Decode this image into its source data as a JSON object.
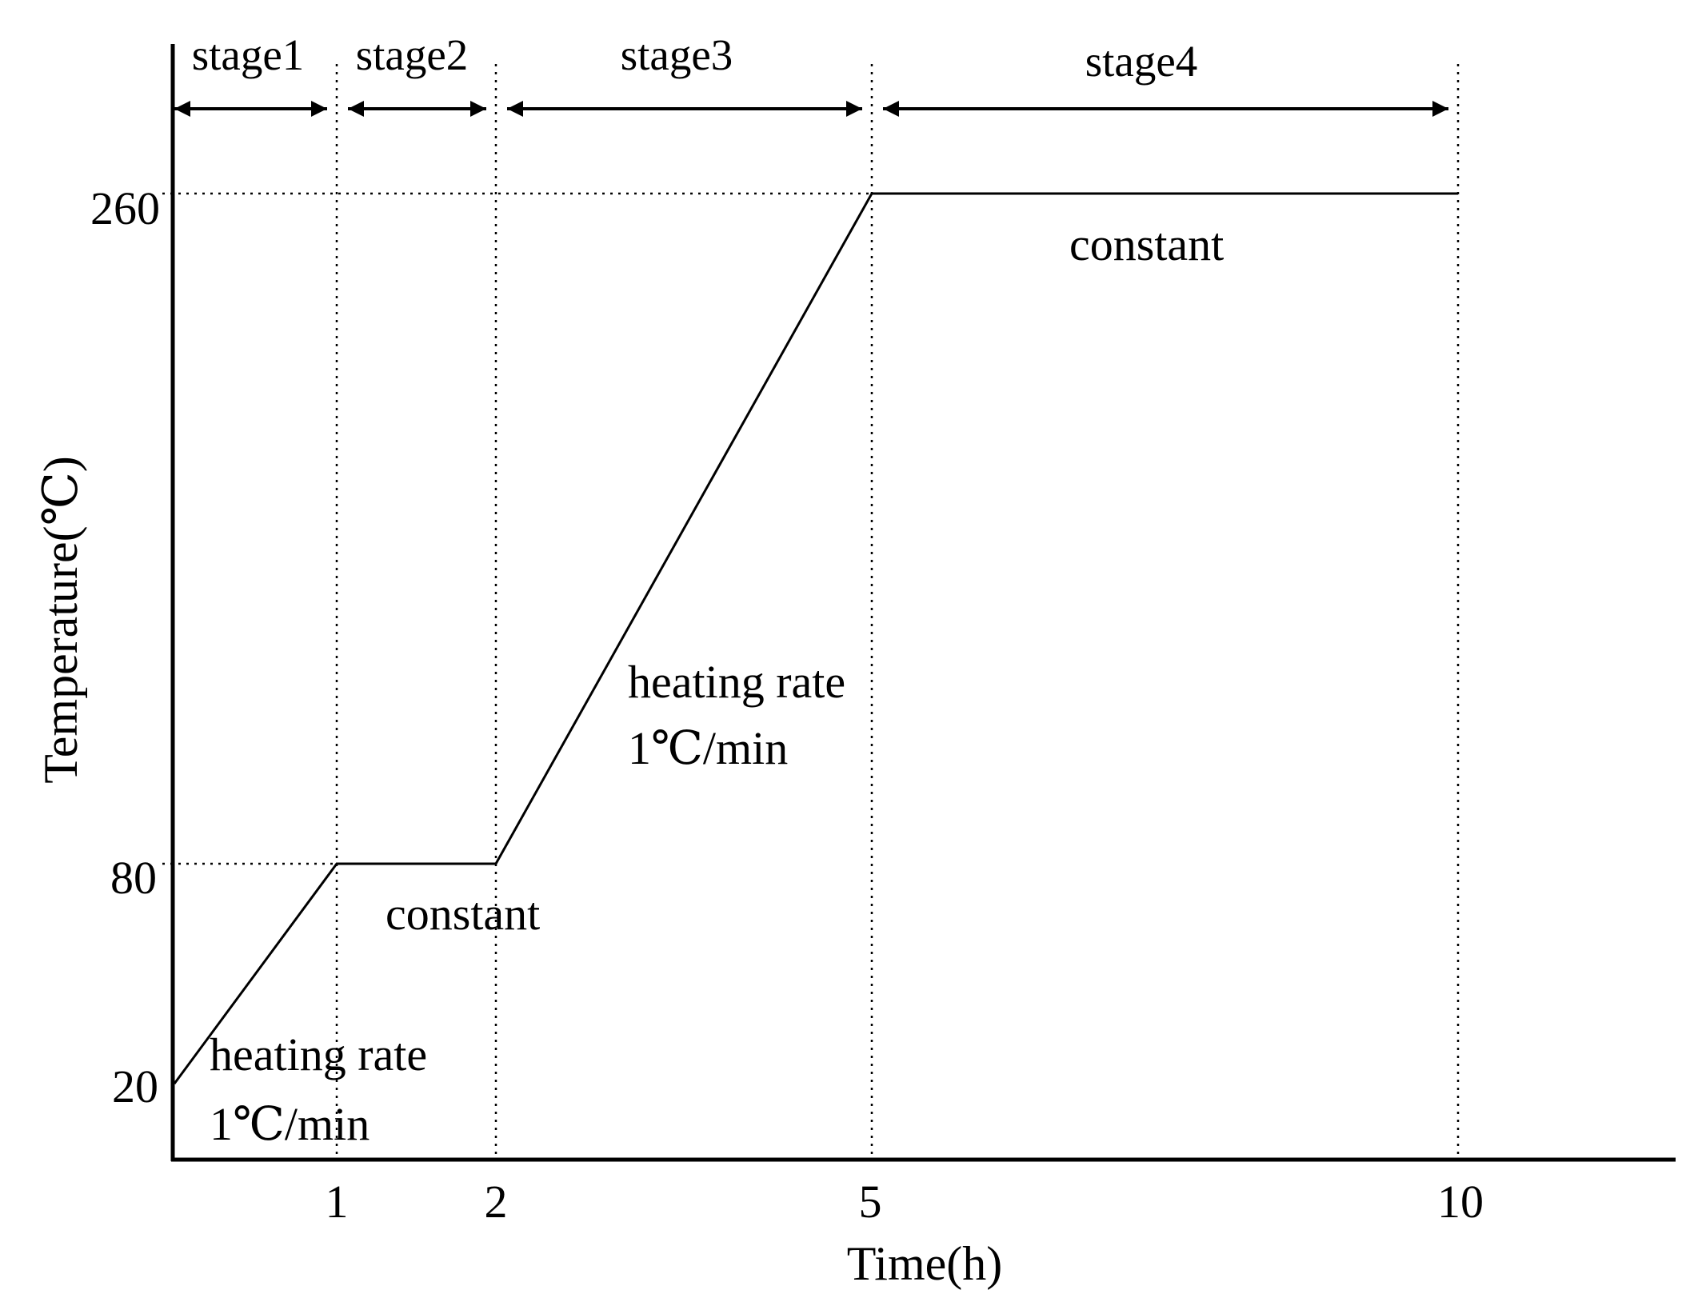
{
  "chart_data": {
    "type": "line",
    "xlabel": "Time(h)",
    "ylabel": "Temperature(℃)",
    "x_ticks": [
      {
        "value": 1,
        "label": "1"
      },
      {
        "value": 2,
        "label": "2"
      },
      {
        "value": 5,
        "label": "5"
      },
      {
        "value": 10,
        "label": "10"
      }
    ],
    "y_ticks": [
      {
        "value": 20,
        "label": "20"
      },
      {
        "value": 80,
        "label": "80"
      },
      {
        "value": 260,
        "label": "260"
      }
    ],
    "series": [
      {
        "name": "temperature profile",
        "points": [
          {
            "x": 0,
            "y": 20
          },
          {
            "x": 1,
            "y": 80
          },
          {
            "x": 2,
            "y": 80
          },
          {
            "x": 5,
            "y": 260
          },
          {
            "x": 10,
            "y": 260
          }
        ]
      }
    ],
    "stages": [
      {
        "label": "stage1",
        "start": 0,
        "end": 1
      },
      {
        "label": "stage2",
        "start": 1,
        "end": 2
      },
      {
        "label": "stage3",
        "start": 2,
        "end": 5
      },
      {
        "label": "stage4",
        "start": 5,
        "end": 10
      }
    ],
    "annotations": {
      "stage1_rate": "heating rate",
      "stage1_rate_value": "1℃/min",
      "stage2_note": "constant",
      "stage3_rate": "heating rate",
      "stage3_rate_value": "1℃/min",
      "stage4_note": "constant"
    }
  }
}
